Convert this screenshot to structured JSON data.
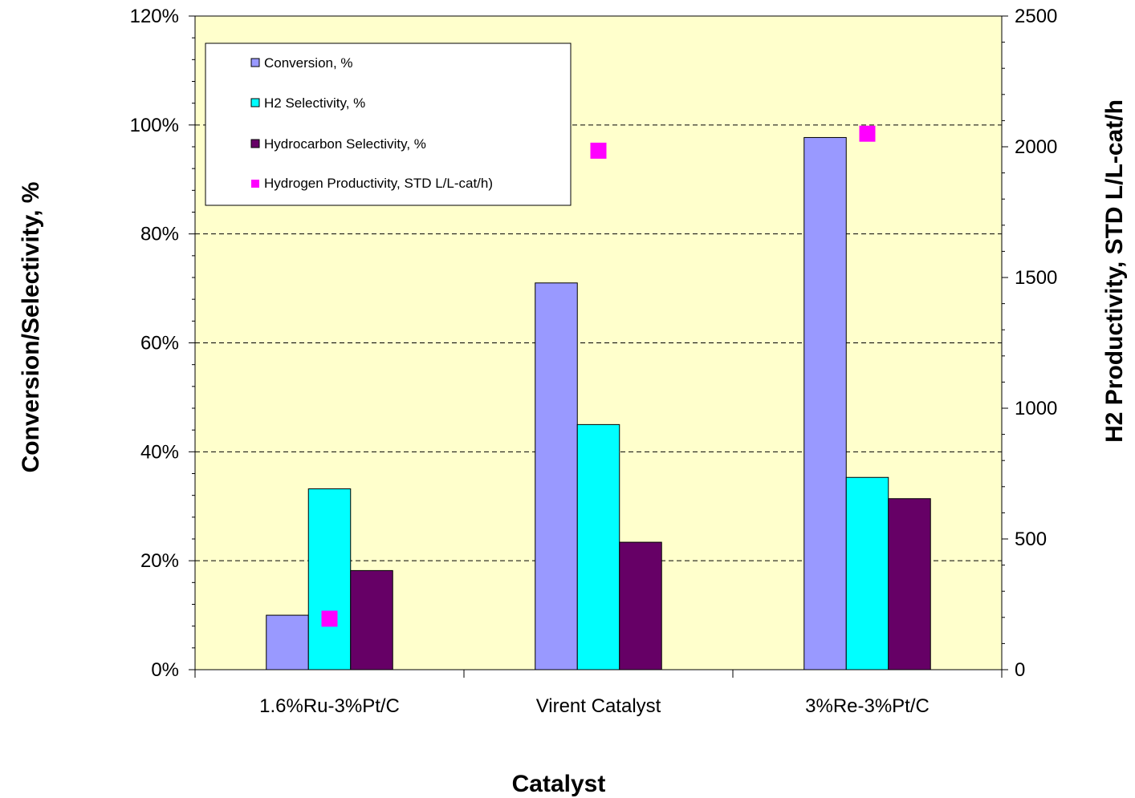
{
  "chart_data": {
    "type": "bar",
    "categories": [
      "1.6%Ru-3%Pt/C",
      "Virent Catalyst",
      "3%Re-3%Pt/C"
    ],
    "series": [
      {
        "name": "Conversion, %",
        "type": "bar",
        "axis": "left",
        "color": "#9999FF",
        "values": [
          0.1,
          0.71,
          0.977
        ]
      },
      {
        "name": "H2 Selectivity, %",
        "type": "bar",
        "axis": "left",
        "color": "#00FFFF",
        "values": [
          0.332,
          0.45,
          0.353
        ]
      },
      {
        "name": "Hydrocarbon Selectivity, %",
        "type": "bar",
        "axis": "left",
        "color": "#660066",
        "values": [
          0.182,
          0.234,
          0.314
        ]
      },
      {
        "name": "Hydrogen Productivity, STD L/L-cat/h)",
        "type": "scatter",
        "axis": "right",
        "color": "#FF00FF",
        "values": [
          195,
          1985,
          2050
        ]
      }
    ],
    "xlabel": "Catalyst",
    "ylabel": "Conversion/Selectivity, %",
    "y2label": "H2 Productivity, STD L/L-cat/h",
    "ylim": [
      0,
      1.2
    ],
    "y2lim": [
      0,
      2500
    ],
    "yticks": [
      "0%",
      "20%",
      "40%",
      "60%",
      "80%",
      "100%",
      "120%"
    ],
    "y2ticks": [
      "0",
      "500",
      "1000",
      "1500",
      "2000",
      "2500"
    ],
    "grid": true,
    "legend_position": "top-left",
    "plot_background": "#FFFFCC"
  }
}
